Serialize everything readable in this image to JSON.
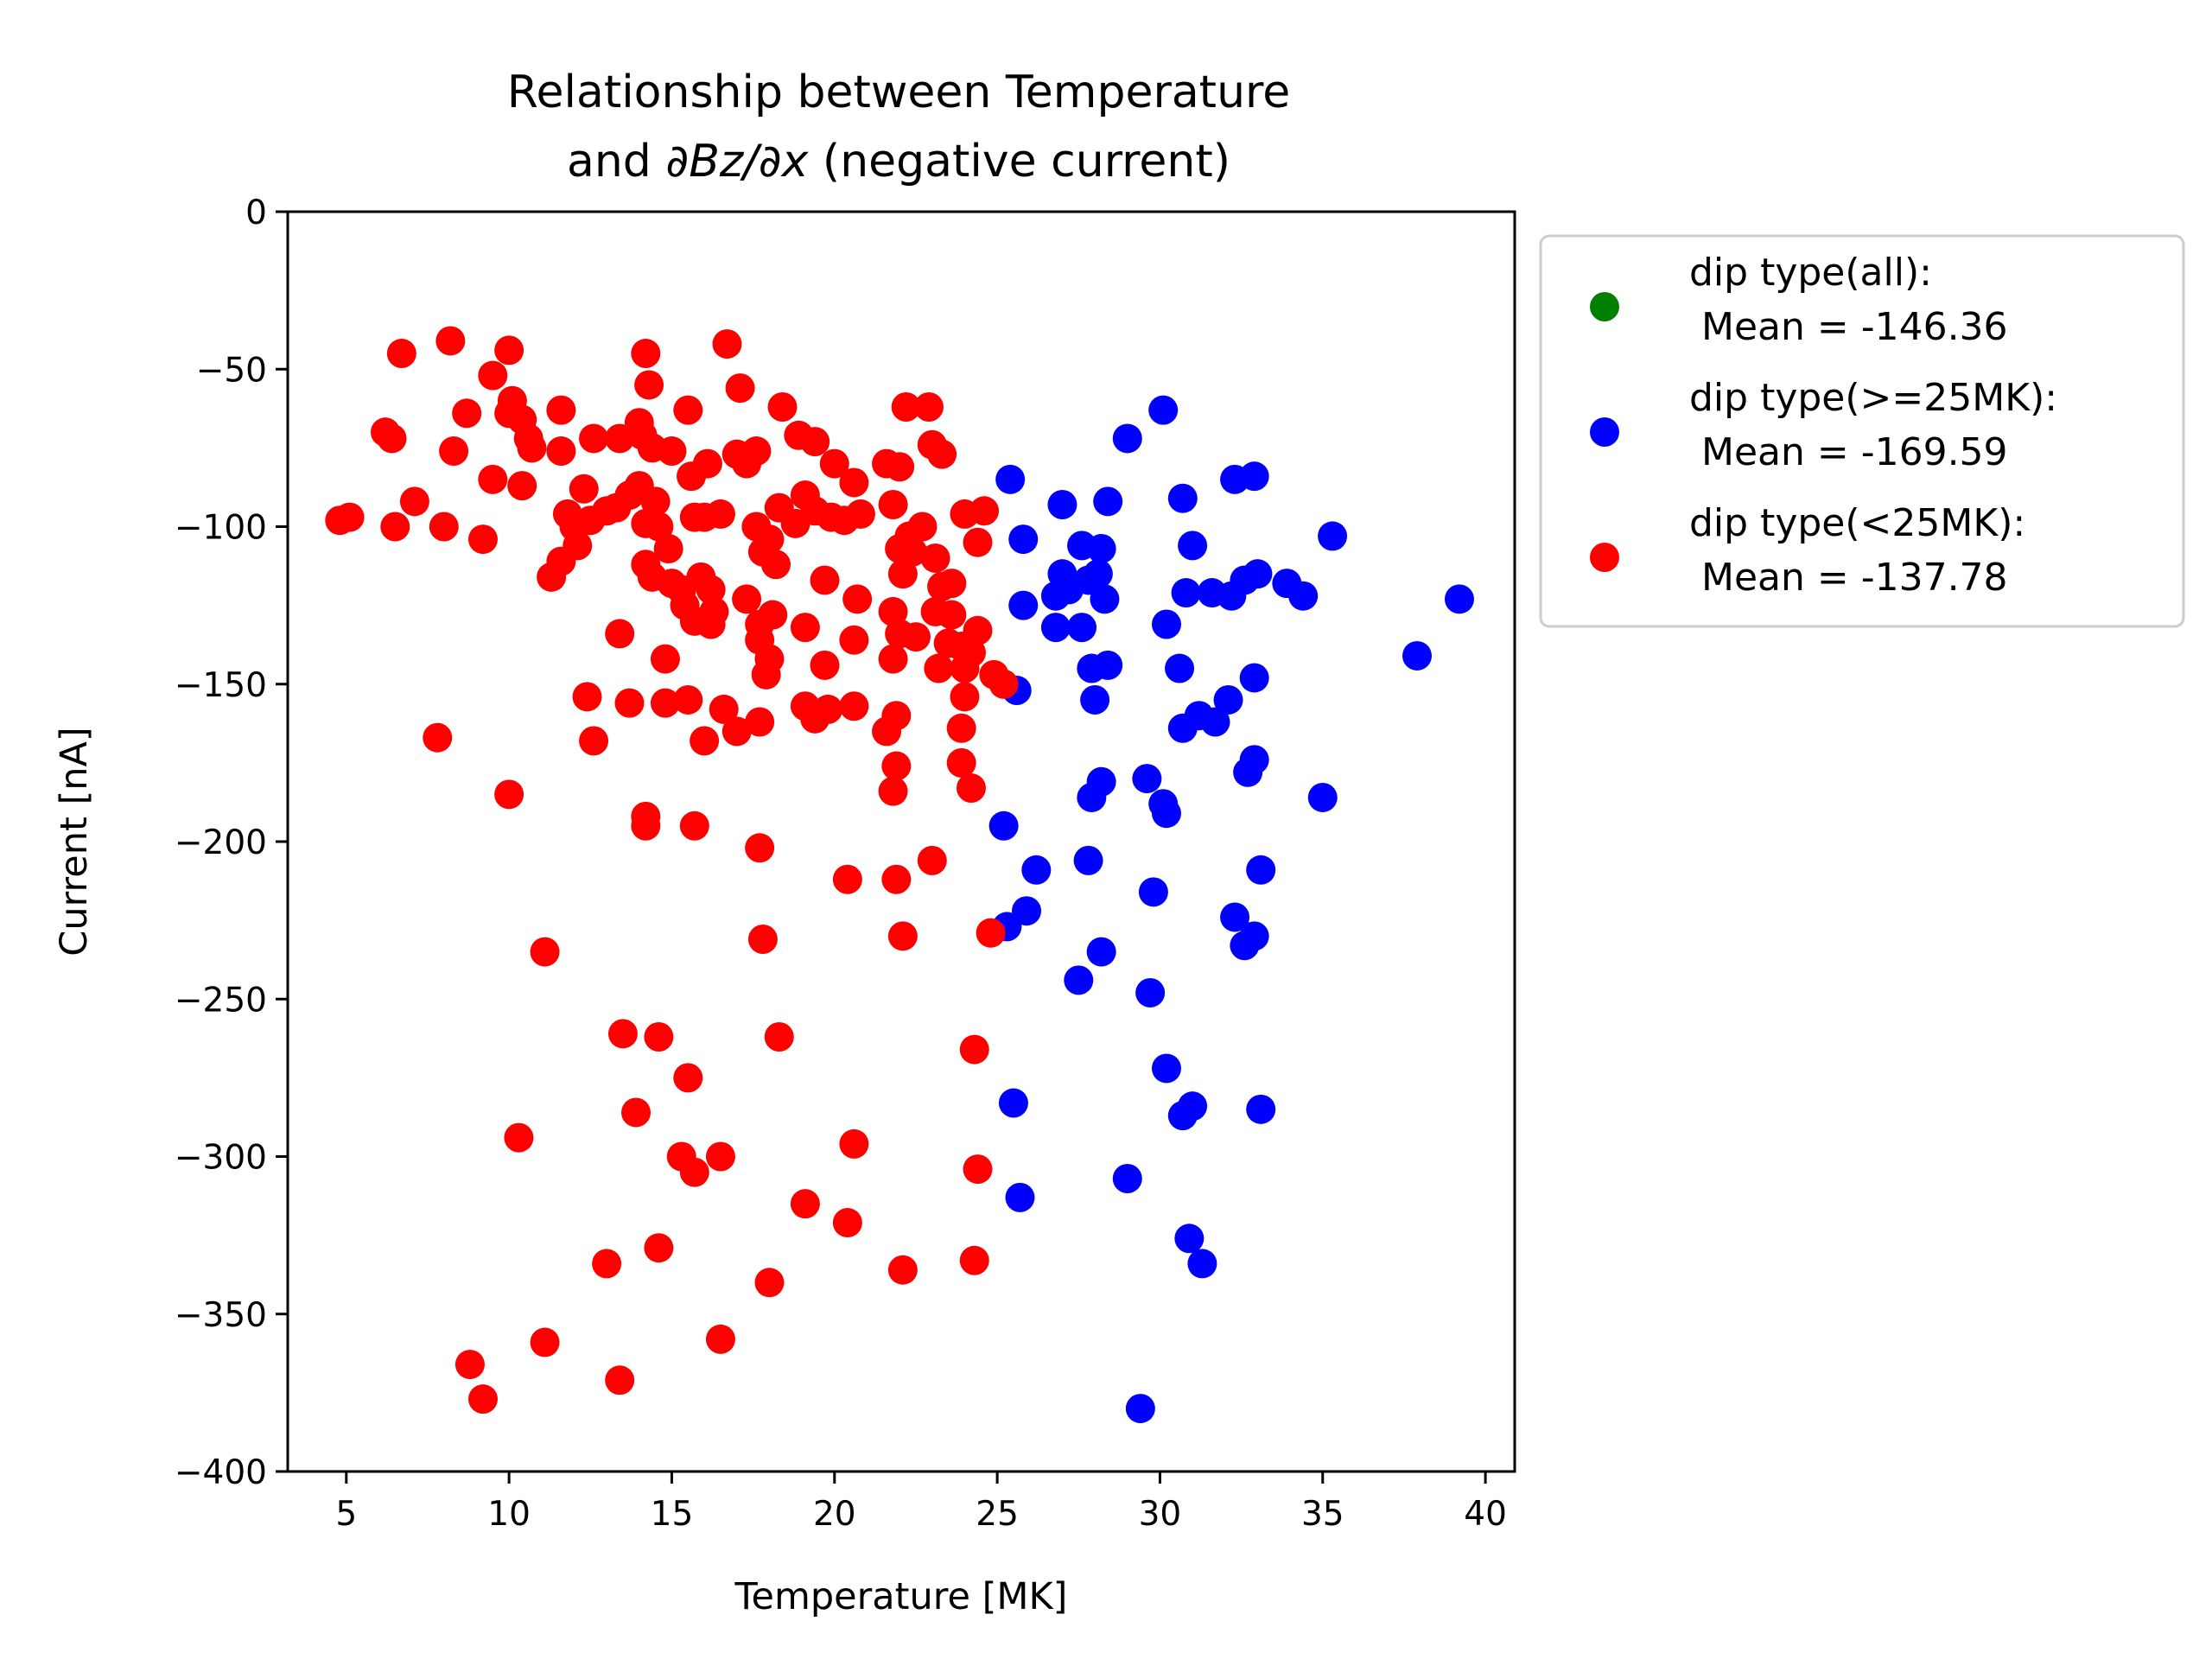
{
  "chart_data": {
    "type": "scatter",
    "title_line1": "Relationship between Temperature",
    "title_line2_pre": "and ",
    "title_line2_math": "∂Bz/∂x",
    "title_line2_post": " (negative current)",
    "xlabel": "Temperature [MK]",
    "ylabel": "Current [nA]",
    "xlim": [
      3.2,
      40.9
    ],
    "ylim": [
      -400,
      0
    ],
    "xticks": [
      5,
      10,
      15,
      20,
      25,
      30,
      35,
      40
    ],
    "yticks": [
      0,
      -50,
      -100,
      -150,
      -200,
      -250,
      -300,
      -350,
      -400
    ],
    "grid": false,
    "legend_position": "outside-right-top",
    "series": [
      {
        "name": "dip type(all):",
        "mean_label": " Mean = -146.36",
        "color": "#008000",
        "points": []
      },
      {
        "name": "dip type(>=25MK):",
        "mean_label": " Mean = -169.59",
        "color": "#0000ff",
        "points": [
          [
            30.1,
            -63
          ],
          [
            29.0,
            -72
          ],
          [
            32.3,
            -85
          ],
          [
            32.9,
            -84
          ],
          [
            25.4,
            -85
          ],
          [
            30.7,
            -91
          ],
          [
            27.0,
            -93
          ],
          [
            28.4,
            -92
          ],
          [
            35.3,
            -103
          ],
          [
            25.8,
            -104
          ],
          [
            27.6,
            -106
          ],
          [
            28.2,
            -107
          ],
          [
            31.0,
            -106
          ],
          [
            27.0,
            -115
          ],
          [
            27.8,
            -117
          ],
          [
            28.1,
            -115
          ],
          [
            32.6,
            -117
          ],
          [
            33.0,
            -115
          ],
          [
            33.9,
            -118
          ],
          [
            34.4,
            -122
          ],
          [
            39.2,
            -123
          ],
          [
            25.8,
            -125
          ],
          [
            26.8,
            -122
          ],
          [
            27.2,
            -120
          ],
          [
            28.3,
            -123
          ],
          [
            30.8,
            -121
          ],
          [
            31.6,
            -121
          ],
          [
            32.2,
            -122
          ],
          [
            26.8,
            -132
          ],
          [
            27.6,
            -132
          ],
          [
            30.2,
            -131
          ],
          [
            37.9,
            -141
          ],
          [
            25.6,
            -152
          ],
          [
            27.9,
            -145
          ],
          [
            28.4,
            -144
          ],
          [
            28.0,
            -155
          ],
          [
            30.6,
            -145
          ],
          [
            32.9,
            -148
          ],
          [
            31.2,
            -160
          ],
          [
            31.7,
            -162
          ],
          [
            32.1,
            -155
          ],
          [
            30.7,
            -164
          ],
          [
            32.7,
            -178
          ],
          [
            32.9,
            -174
          ],
          [
            35.0,
            -186
          ],
          [
            28.2,
            -181
          ],
          [
            27.9,
            -186
          ],
          [
            29.6,
            -180
          ],
          [
            30.1,
            -188
          ],
          [
            30.2,
            -191
          ],
          [
            25.2,
            -195
          ],
          [
            26.2,
            -209
          ],
          [
            27.8,
            -206
          ],
          [
            33.1,
            -209
          ],
          [
            29.8,
            -216
          ],
          [
            25.3,
            -227
          ],
          [
            25.9,
            -222
          ],
          [
            32.3,
            -224
          ],
          [
            32.9,
            -230
          ],
          [
            32.6,
            -233
          ],
          [
            28.2,
            -235
          ],
          [
            27.5,
            -244
          ],
          [
            29.7,
            -248
          ],
          [
            30.2,
            -272
          ],
          [
            25.5,
            -283
          ],
          [
            31.0,
            -284
          ],
          [
            30.7,
            -287
          ],
          [
            33.1,
            -285
          ],
          [
            29.0,
            -307
          ],
          [
            25.7,
            -313
          ],
          [
            30.9,
            -326
          ],
          [
            31.3,
            -334
          ],
          [
            29.4,
            -380
          ]
        ]
      },
      {
        "name": "dip type(<25MK):",
        "mean_label": " Mean = -137.78",
        "color": "#ff0000",
        "points": [
          [
            6.7,
            -45
          ],
          [
            8.2,
            -41
          ],
          [
            10.0,
            -44
          ],
          [
            14.2,
            -45
          ],
          [
            16.7,
            -42
          ],
          [
            9.5,
            -52
          ],
          [
            10.1,
            -60
          ],
          [
            10.0,
            -64
          ],
          [
            10.4,
            -66
          ],
          [
            14.3,
            -55
          ],
          [
            17.1,
            -56
          ],
          [
            6.2,
            -70
          ],
          [
            6.4,
            -72
          ],
          [
            8.7,
            -64
          ],
          [
            8.3,
            -76
          ],
          [
            10.6,
            -72
          ],
          [
            10.7,
            -75
          ],
          [
            11.6,
            -63
          ],
          [
            11.6,
            -76
          ],
          [
            12.6,
            -72
          ],
          [
            13.4,
            -72
          ],
          [
            14.0,
            -67
          ],
          [
            14.1,
            -71
          ],
          [
            14.4,
            -75
          ],
          [
            15.0,
            -76
          ],
          [
            15.5,
            -63
          ],
          [
            16.1,
            -80
          ],
          [
            17.0,
            -77
          ],
          [
            17.3,
            -80
          ],
          [
            17.6,
            -76
          ],
          [
            18.4,
            -62
          ],
          [
            18.9,
            -71
          ],
          [
            19.4,
            -73
          ],
          [
            20.0,
            -80
          ],
          [
            20.6,
            -86
          ],
          [
            21.6,
            -80
          ],
          [
            22.0,
            -81
          ],
          [
            22.2,
            -62
          ],
          [
            22.9,
            -62
          ],
          [
            23.0,
            -74
          ],
          [
            23.3,
            -77
          ],
          [
            4.8,
            -98
          ],
          [
            5.1,
            -97
          ],
          [
            6.5,
            -100
          ],
          [
            7.1,
            -92
          ],
          [
            8.0,
            -100
          ],
          [
            9.2,
            -104
          ],
          [
            9.5,
            -85
          ],
          [
            10.4,
            -87
          ],
          [
            11.3,
            -116
          ],
          [
            11.6,
            -111
          ],
          [
            11.8,
            -96
          ],
          [
            12.0,
            -100
          ],
          [
            12.1,
            -106
          ],
          [
            12.3,
            -88
          ],
          [
            12.5,
            -98
          ],
          [
            13.0,
            -95
          ],
          [
            13.3,
            -94
          ],
          [
            13.7,
            -90
          ],
          [
            14.0,
            -87
          ],
          [
            14.2,
            -99
          ],
          [
            14.5,
            -92
          ],
          [
            14.6,
            -100
          ],
          [
            14.9,
            -107
          ],
          [
            14.2,
            -112
          ],
          [
            14.4,
            -116
          ],
          [
            15.0,
            -118
          ],
          [
            15.3,
            -120
          ],
          [
            15.4,
            -125
          ],
          [
            15.7,
            -130
          ],
          [
            15.9,
            -116
          ],
          [
            16.2,
            -120
          ],
          [
            16.3,
            -127
          ],
          [
            15.6,
            -84
          ],
          [
            15.7,
            -97
          ],
          [
            16.0,
            -97
          ],
          [
            16.5,
            -96
          ],
          [
            17.6,
            -100
          ],
          [
            17.8,
            -108
          ],
          [
            18.0,
            -104
          ],
          [
            18.2,
            -112
          ],
          [
            18.3,
            -94
          ],
          [
            18.8,
            -99
          ],
          [
            19.1,
            -90
          ],
          [
            19.4,
            -95
          ],
          [
            19.9,
            -97
          ],
          [
            20.3,
            -98
          ],
          [
            20.8,
            -96
          ],
          [
            17.3,
            -123
          ],
          [
            17.7,
            -131
          ],
          [
            18.1,
            -128
          ],
          [
            19.1,
            -132
          ],
          [
            19.7,
            -117
          ],
          [
            20.7,
            -123
          ],
          [
            21.8,
            -93
          ],
          [
            22.0,
            -107
          ],
          [
            22.3,
            -103
          ],
          [
            22.7,
            -100
          ],
          [
            23.1,
            -110
          ],
          [
            22.1,
            -115
          ],
          [
            22.4,
            -108
          ],
          [
            23.3,
            -119
          ],
          [
            23.6,
            -118
          ],
          [
            24.0,
            -96
          ],
          [
            24.6,
            -95
          ],
          [
            24.4,
            -105
          ],
          [
            21.8,
            -127
          ],
          [
            22.0,
            -134
          ],
          [
            22.5,
            -135
          ],
          [
            23.2,
            -145
          ],
          [
            23.5,
            -137
          ],
          [
            23.9,
            -138
          ],
          [
            24.0,
            -145
          ],
          [
            24.4,
            -133
          ],
          [
            24.9,
            -147
          ],
          [
            25.2,
            -150
          ],
          [
            13.4,
            -134
          ],
          [
            16.2,
            -131
          ],
          [
            17.7,
            -136
          ],
          [
            18.0,
            -142
          ],
          [
            19.7,
            -144
          ],
          [
            20.6,
            -136
          ],
          [
            21.8,
            -142
          ],
          [
            23.1,
            -127
          ],
          [
            23.6,
            -128
          ],
          [
            24.2,
            -140
          ],
          [
            12.4,
            -154
          ],
          [
            13.7,
            -156
          ],
          [
            14.8,
            -156
          ],
          [
            15.5,
            -155
          ],
          [
            14.8,
            -142
          ],
          [
            16.6,
            -158
          ],
          [
            17.0,
            -165
          ],
          [
            17.7,
            -162
          ],
          [
            17.9,
            -147
          ],
          [
            19.1,
            -157
          ],
          [
            19.4,
            -161
          ],
          [
            19.8,
            -158
          ],
          [
            20.6,
            -157
          ],
          [
            21.6,
            -165
          ],
          [
            21.9,
            -160
          ],
          [
            24.0,
            -154
          ],
          [
            7.8,
            -167
          ],
          [
            12.6,
            -168
          ],
          [
            16.0,
            -168
          ],
          [
            23.9,
            -164
          ],
          [
            21.9,
            -176
          ],
          [
            21.8,
            -184
          ],
          [
            23.9,
            -175
          ],
          [
            24.2,
            -183
          ],
          [
            10.0,
            -185
          ],
          [
            14.2,
            -192
          ],
          [
            14.2,
            -195
          ],
          [
            15.7,
            -195
          ],
          [
            17.7,
            -202
          ],
          [
            20.4,
            -212
          ],
          [
            21.9,
            -212
          ],
          [
            23.0,
            -206
          ],
          [
            11.1,
            -235
          ],
          [
            17.8,
            -231
          ],
          [
            22.1,
            -230
          ],
          [
            24.8,
            -229
          ],
          [
            13.5,
            -261
          ],
          [
            14.6,
            -262
          ],
          [
            18.3,
            -262
          ],
          [
            24.3,
            -266
          ],
          [
            13.9,
            -286
          ],
          [
            15.5,
            -275
          ],
          [
            10.3,
            -294
          ],
          [
            15.3,
            -300
          ],
          [
            16.5,
            -300
          ],
          [
            20.6,
            -296
          ],
          [
            15.7,
            -305
          ],
          [
            24.4,
            -304
          ],
          [
            19.1,
            -315
          ],
          [
            20.4,
            -321
          ],
          [
            14.6,
            -329
          ],
          [
            13.0,
            -334
          ],
          [
            22.1,
            -336
          ],
          [
            24.3,
            -333
          ],
          [
            18.0,
            -340
          ],
          [
            11.1,
            -359
          ],
          [
            16.5,
            -358
          ],
          [
            13.4,
            -371
          ],
          [
            8.8,
            -366
          ],
          [
            9.2,
            -377
          ]
        ]
      }
    ]
  }
}
